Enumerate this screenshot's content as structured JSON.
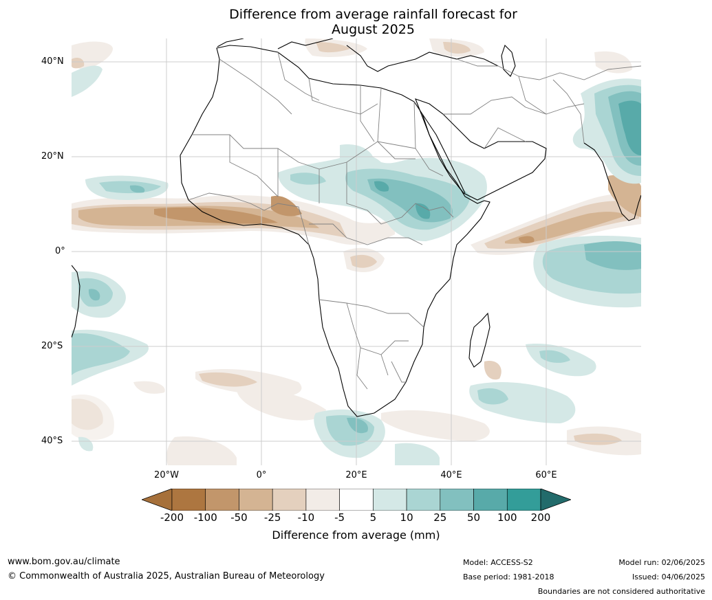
{
  "title": {
    "line1": "Difference from average rainfall forecast for",
    "line2": "August 2025"
  },
  "map": {
    "lat_labels": [
      "40°N",
      "20°N",
      "0°",
      "20°S",
      "40°S"
    ],
    "lon_labels": [
      "20°W",
      "0°",
      "20°E",
      "40°E",
      "60°E"
    ],
    "extent": {
      "lon": [
        -40,
        80
      ],
      "lat": [
        -45,
        45
      ]
    }
  },
  "colorbar": {
    "title": "Difference from average (mm)",
    "ticks": [
      "-200",
      "-100",
      "-50",
      "-25",
      "-10",
      "-5",
      "5",
      "10",
      "25",
      "50",
      "100",
      "200"
    ],
    "colors": [
      "#a6703a",
      "#ad7640",
      "#c2966b",
      "#d4b493",
      "#e4d0be",
      "#f2ece7",
      "#ffffff",
      "#d4e8e6",
      "#aad5d3",
      "#82c0bf",
      "#58aaa9",
      "#339d99",
      "#226b6b"
    ]
  },
  "footer": {
    "website": "www.bom.gov.au/climate",
    "copyright": "© Commonwealth of Australia 2025, Australian Bureau of Meteorology",
    "model": "Model: ACCESS-S2",
    "base_period": "Base period: 1981-2018",
    "model_run": "Model run: 02/06/2025",
    "issued": "Issued: 04/06/2025",
    "disclaimer": "Boundaries are not considered authoritative"
  }
}
